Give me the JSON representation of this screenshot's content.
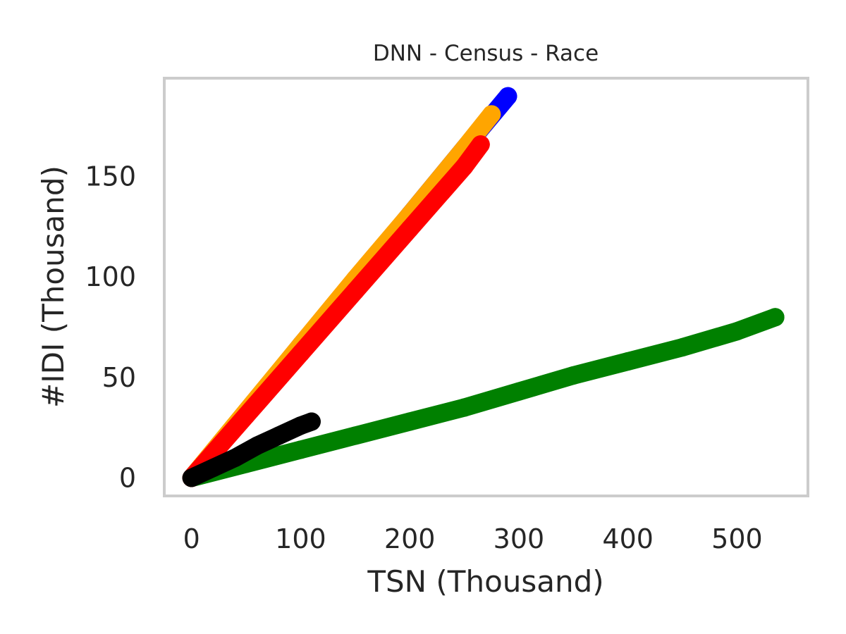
{
  "chart_data": {
    "type": "line",
    "title": "DNN - Census - Race",
    "xlabel": "TSN (Thousand)",
    "ylabel": "#IDI (Thousand)",
    "xlim": [
      -25,
      565
    ],
    "ylim": [
      -9,
      199
    ],
    "xticks": [
      0,
      100,
      200,
      300,
      400,
      500
    ],
    "yticks": [
      0,
      50,
      100,
      150
    ],
    "xtick_labels": [
      "0",
      "100",
      "200",
      "300",
      "400",
      "500"
    ],
    "ytick_labels": [
      "0",
      "50",
      "100",
      "150"
    ],
    "grid": false,
    "legend": "none",
    "series": [
      {
        "color": "#0000ff",
        "x": [
          0,
          50,
          100,
          150,
          200,
          250,
          290
        ],
        "y": [
          0,
          32,
          66,
          98,
          131,
          164,
          190
        ]
      },
      {
        "color": "#ffa500",
        "x": [
          0,
          50,
          100,
          150,
          200,
          250,
          275
        ],
        "y": [
          0,
          33,
          66,
          99,
          131,
          164,
          181
        ]
      },
      {
        "color": "#008000",
        "x": [
          0,
          50,
          100,
          150,
          200,
          250,
          300,
          350,
          400,
          450,
          500,
          535
        ],
        "y": [
          0,
          7,
          14,
          21,
          28,
          35,
          43,
          51,
          58,
          65,
          73,
          80
        ]
      },
      {
        "color": "#ff0000",
        "x": [
          0,
          50,
          100,
          150,
          200,
          250,
          265
        ],
        "y": [
          0,
          31,
          62,
          93,
          124,
          155,
          166
        ]
      },
      {
        "color": "#000000",
        "x": [
          0,
          20,
          40,
          60,
          80,
          100,
          110
        ],
        "y": [
          0,
          5,
          10,
          16,
          21,
          26,
          28
        ]
      }
    ]
  }
}
